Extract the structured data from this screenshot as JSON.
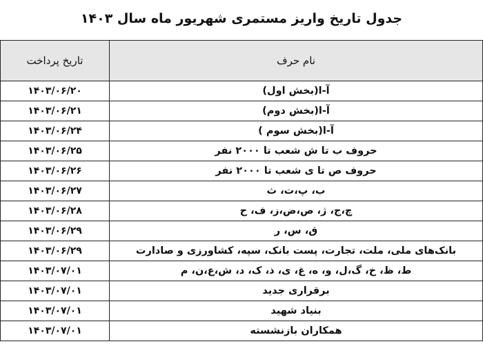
{
  "title": "جدول تاریخ واریز مستمری شهریور ماه سال ۱۴۰۳",
  "headers": {
    "date": "تاریخ پرداخت",
    "name": "نام حرف"
  },
  "rows": [
    {
      "date": "۱۴۰۳/۰۶/۲۰",
      "name": "آ-ا(بخش اول)"
    },
    {
      "date": "۱۴۰۳/۰۶/۲۱",
      "name": "آ-ا(بخش دوم)"
    },
    {
      "date": "۱۴۰۳/۰۶/۲۴",
      "name": "آ-ا(بخش سوم )"
    },
    {
      "date": "۱۴۰۳/۰۶/۲۵",
      "name": "حروف ب تا ش شعب تا ۲۰۰۰ نفر"
    },
    {
      "date": "۱۴۰۳/۰۶/۲۶",
      "name": "حروف ص تا ی  شعب تا ۲۰۰۰ نفر"
    },
    {
      "date": "۱۴۰۳/۰۶/۲۷",
      "name": "ب، پ،ت، ث"
    },
    {
      "date": "۱۴۰۳/۰۶/۲۸",
      "name": "چ،ج، ژ، ص،ض،ز، ف، ح"
    },
    {
      "date": "۱۴۰۳/۰۶/۲۹",
      "name": "ق، س، ر"
    },
    {
      "date": "۱۴۰۳/۰۶/۲۹",
      "name": "بانک‌های ملی، ملت، تجارت، پست بانک، سپه، کشاورزی و صادارت"
    },
    {
      "date": "۱۴۰۳/۰۷/۰۱",
      "name": "ط، ظ، خ، گ،ل، و، ه، غ، ی، ذ، ک، د، ش،ع،ن، م"
    },
    {
      "date": "۱۴۰۳/۰۷/۰۱",
      "name": "برقراری جدید"
    },
    {
      "date": "۱۴۰۳/۰۷/۰۱",
      "name": "بنیاد شهید"
    },
    {
      "date": "۱۴۰۳/۰۷/۰۱",
      "name": "همکاران بازنشسته"
    }
  ]
}
